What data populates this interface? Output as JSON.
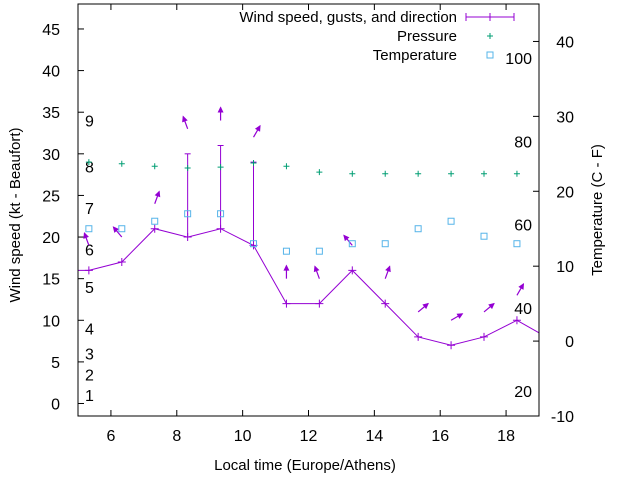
{
  "chart_data": {
    "type": "line",
    "xlabel": "Local time (Europe/Athens)",
    "ylabel": "Wind speed (kt - Beaufort)",
    "y2label": "Temperature (C - F)",
    "xlim": [
      5,
      19
    ],
    "ylim": [
      -1.5,
      48
    ],
    "y2lim": [
      -10,
      45
    ],
    "x_ticks": [
      6,
      8,
      10,
      12,
      14,
      16,
      18
    ],
    "y_ticks": [
      0,
      5,
      10,
      15,
      20,
      25,
      30,
      35,
      40,
      45
    ],
    "y2_ticks": [
      -10,
      0,
      10,
      20,
      30,
      40
    ],
    "beaufort_labels": [
      {
        "label": "1",
        "kt": 1
      },
      {
        "label": "2",
        "kt": 3.5
      },
      {
        "label": "3",
        "kt": 6
      },
      {
        "label": "4",
        "kt": 9
      },
      {
        "label": "5",
        "kt": 14
      },
      {
        "label": "6",
        "kt": 18.5
      },
      {
        "label": "7",
        "kt": 23.5
      },
      {
        "label": "8",
        "kt": 28.5
      },
      {
        "label": "9",
        "kt": 34
      }
    ],
    "fahrenheit_labels": [
      {
        "label": "20",
        "c": -6.67
      },
      {
        "label": "40",
        "c": 4.44
      },
      {
        "label": "60",
        "c": 15.56
      },
      {
        "label": "80",
        "c": 26.67
      },
      {
        "label": "100",
        "c": 37.78
      }
    ],
    "legend": {
      "position": "top-right",
      "items": [
        "Wind speed, gusts, and direction",
        "Pressure",
        "Temperature"
      ]
    },
    "colors": {
      "wind": "#9400d3",
      "pressure": "#009e73",
      "temperature": "#56b4e9"
    },
    "series": [
      {
        "name": "Wind speed, gusts, and direction",
        "x": [
          5,
          5.33,
          6.33,
          7.33,
          8.33,
          9.33,
          10.33,
          11.33,
          12.33,
          13.33,
          14.33,
          15.33,
          16.33,
          17.33,
          18.33,
          19
        ],
        "values": [
          16,
          16,
          17,
          21,
          20,
          21,
          19,
          12,
          12,
          16,
          12,
          8,
          7,
          8,
          10,
          8.5
        ],
        "gusts": [
          null,
          null,
          null,
          null,
          30,
          31,
          29,
          null,
          null,
          null,
          null,
          null,
          null,
          null,
          null,
          null
        ],
        "direction_deg": [
          null,
          340,
          320,
          20,
          340,
          0,
          30,
          0,
          340,
          320,
          20,
          50,
          60,
          50,
          30,
          null
        ]
      },
      {
        "name": "Pressure",
        "x": [
          5.33,
          6.33,
          7.33,
          8.33,
          9.33,
          10.33,
          11.33,
          12.33,
          13.33,
          14.33,
          15.33,
          16.33,
          17.33,
          18.33
        ],
        "values": [
          29.0,
          28.8,
          28.5,
          28.3,
          28.4,
          28.9,
          28.5,
          27.8,
          27.6,
          27.6,
          27.6,
          27.6,
          27.6,
          27.6
        ]
      },
      {
        "name": "Temperature",
        "x": [
          5.33,
          6.33,
          7.33,
          8.33,
          9.33,
          10.33,
          11.33,
          12.33,
          13.33,
          14.33,
          15.33,
          16.33,
          17.33,
          18.33
        ],
        "values": [
          15,
          15,
          16,
          17,
          17,
          13,
          12,
          12,
          13,
          13,
          15,
          16,
          14,
          13
        ]
      }
    ]
  }
}
